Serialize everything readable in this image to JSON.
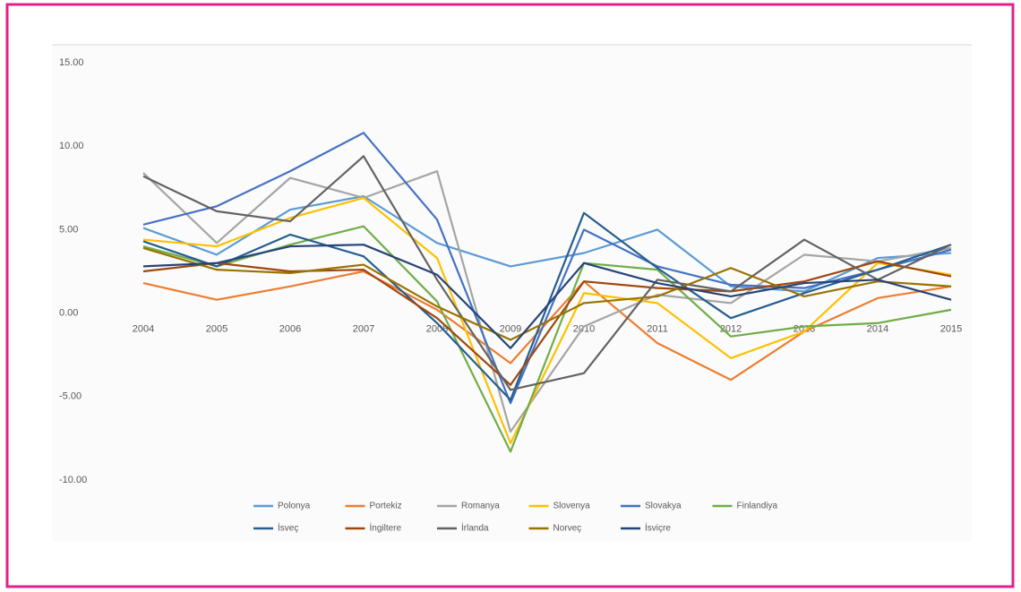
{
  "chart_data": {
    "type": "line",
    "categories": [
      "2004",
      "2005",
      "2006",
      "2007",
      "2008",
      "2009",
      "2010",
      "2011",
      "2012",
      "2013",
      "2014",
      "2015"
    ],
    "ylim": [
      -10,
      15
    ],
    "yticks": [
      {
        "value": 15,
        "label": "15.00"
      },
      {
        "value": 10,
        "label": "10.00"
      },
      {
        "value": 5,
        "label": "5.00"
      },
      {
        "value": 0,
        "label": "0.00"
      },
      {
        "value": -5,
        "label": "-5.00"
      },
      {
        "value": -10,
        "label": "-10.00"
      }
    ],
    "grid": false,
    "legend": "bottom",
    "series": [
      {
        "name": "Polonya",
        "color": "#5b9bd5",
        "values": [
          5.1,
          3.5,
          6.2,
          7.0,
          4.2,
          2.8,
          3.6,
          5.0,
          1.6,
          1.3,
          3.3,
          3.6
        ]
      },
      {
        "name": "Portekiz",
        "color": "#ed7d31",
        "values": [
          1.8,
          0.8,
          1.6,
          2.5,
          0.2,
          -3.0,
          1.9,
          -1.8,
          -4.0,
          -1.1,
          0.9,
          1.6
        ]
      },
      {
        "name": "Romanya",
        "color": "#a5a5a5",
        "values": [
          8.4,
          4.2,
          8.1,
          6.9,
          8.5,
          -7.1,
          -0.8,
          1.1,
          0.6,
          3.5,
          3.1,
          3.9
        ]
      },
      {
        "name": "Slovenya",
        "color": "#ffc000",
        "values": [
          4.4,
          4.0,
          5.7,
          6.9,
          3.3,
          -7.8,
          1.2,
          0.6,
          -2.7,
          -1.1,
          3.0,
          2.3
        ]
      },
      {
        "name": "Slovakya",
        "color": "#4472c4",
        "values": [
          5.3,
          6.4,
          8.5,
          10.8,
          5.6,
          -5.4,
          5.0,
          2.8,
          1.7,
          1.5,
          2.6,
          3.8
        ]
      },
      {
        "name": "Finlandiya",
        "color": "#70ad47",
        "values": [
          4.0,
          2.8,
          4.1,
          5.2,
          0.7,
          -8.3,
          3.0,
          2.6,
          -1.4,
          -0.8,
          -0.6,
          0.2
        ]
      },
      {
        "name": "İsveç",
        "color": "#255e91",
        "values": [
          4.3,
          2.8,
          4.7,
          3.4,
          -0.6,
          -5.2,
          6.0,
          2.7,
          -0.3,
          1.2,
          2.6,
          4.1
        ]
      },
      {
        "name": "İngiltere",
        "color": "#9e480e",
        "values": [
          2.5,
          3.0,
          2.5,
          2.6,
          -0.3,
          -4.3,
          1.9,
          1.5,
          1.3,
          1.9,
          3.1,
          2.2
        ]
      },
      {
        "name": "İrlanda",
        "color": "#636363",
        "values": [
          8.2,
          6.1,
          5.5,
          9.4,
          2.0,
          -4.6,
          -3.6,
          2.0,
          1.3,
          4.4,
          2.0,
          4.1
        ]
      },
      {
        "name": "Norveç",
        "color": "#997300",
        "values": [
          3.9,
          2.6,
          2.4,
          2.9,
          0.4,
          -1.6,
          0.6,
          1.0,
          2.7,
          1.0,
          1.9,
          1.6
        ]
      },
      {
        "name": "İsviçre",
        "color": "#264478",
        "values": [
          2.8,
          3.0,
          4.0,
          4.1,
          2.3,
          -2.1,
          3.0,
          1.8,
          1.0,
          1.8,
          2.0,
          0.8
        ]
      }
    ]
  }
}
